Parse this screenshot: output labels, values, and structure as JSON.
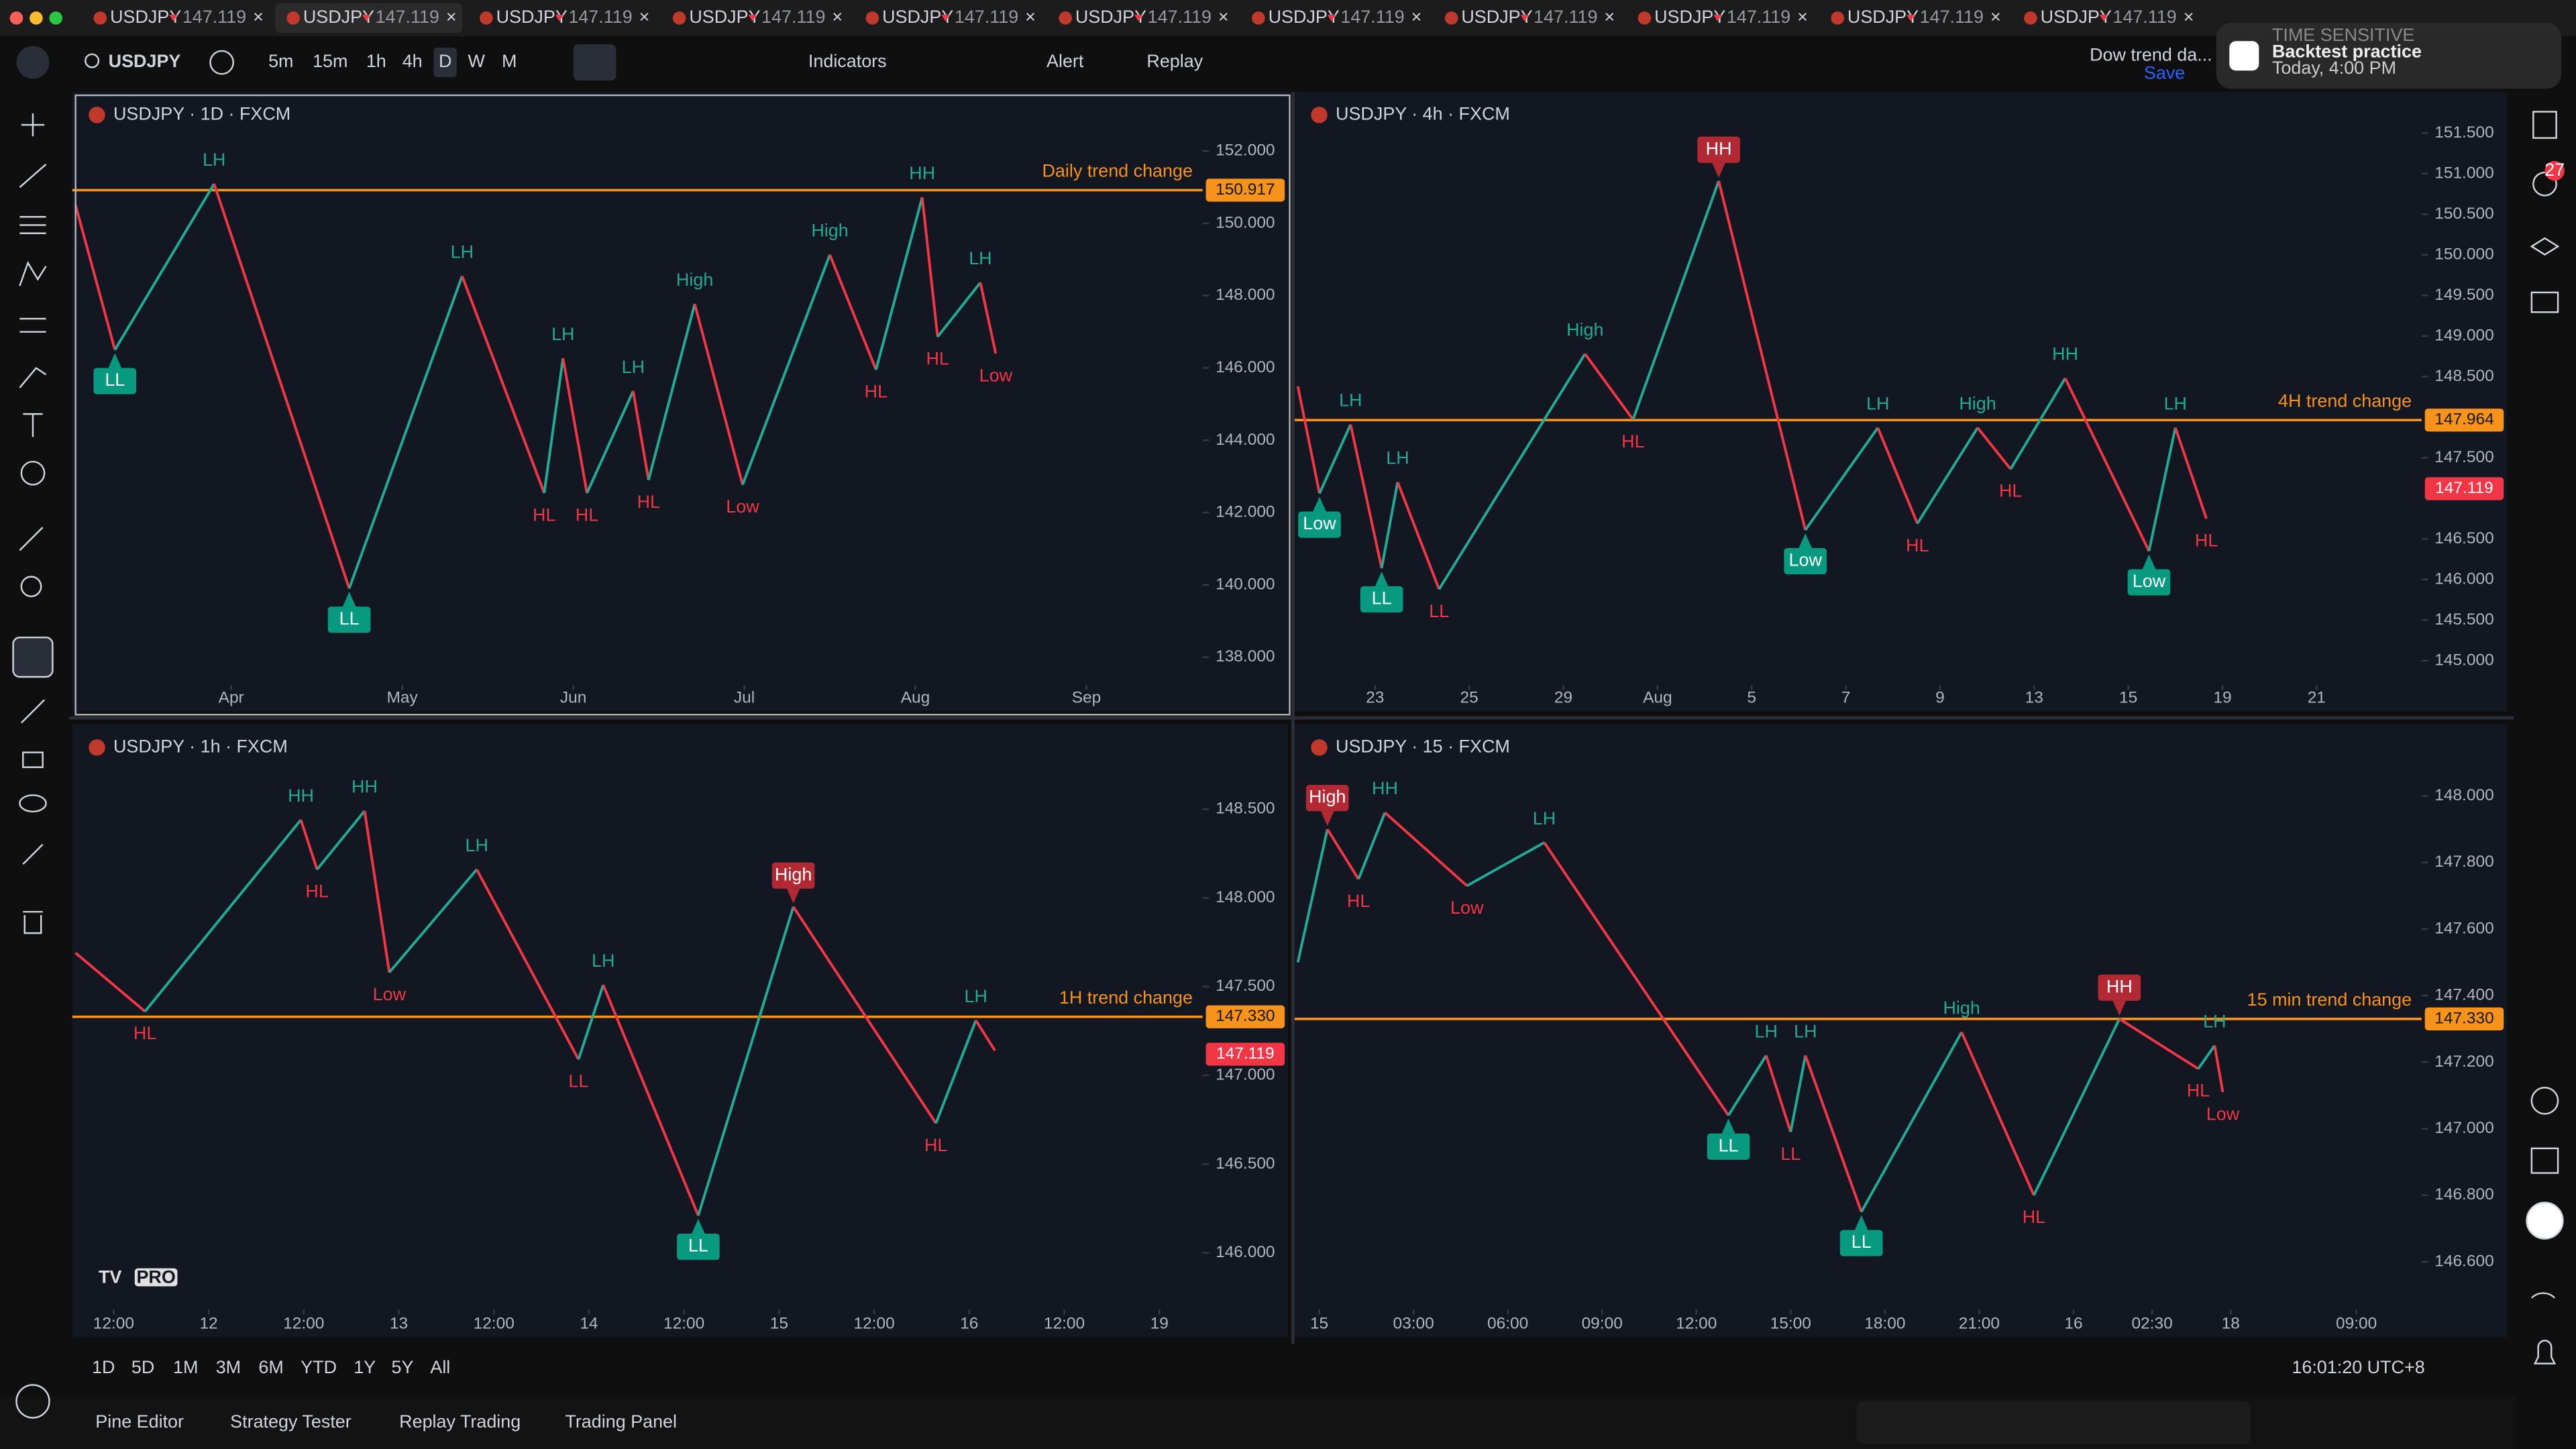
{
  "tabs": [
    {
      "symbol": "USDJPY",
      "price": "147.119"
    },
    {
      "symbol": "USDJPY",
      "price": "147.119"
    },
    {
      "symbol": "USDJPY",
      "price": "147.119"
    },
    {
      "symbol": "USDJPY",
      "price": "147.119"
    },
    {
      "symbol": "USDJPY",
      "price": "147.119"
    },
    {
      "symbol": "USDJPY",
      "price": "147.119"
    },
    {
      "symbol": "USDJPY",
      "price": "147.119"
    },
    {
      "symbol": "USDJPY",
      "price": "147.119"
    },
    {
      "symbol": "USDJPY",
      "price": "147.119"
    },
    {
      "symbol": "USDJPY",
      "price": "147.119"
    },
    {
      "symbol": "USDJPY",
      "price": "147.119"
    }
  ],
  "toolbar": {
    "symbol": "USDJPY",
    "intervals": [
      "5m",
      "15m",
      "1h",
      "4h",
      "D",
      "W",
      "M"
    ],
    "indicators": "Indicators",
    "alert": "Alert",
    "replay": "Replay",
    "layout_name": "Dow trend da...",
    "save": "Save"
  },
  "notification": {
    "tag": "TIME SENSITIVE",
    "title": "Backtest practice",
    "time": "Today, 4:00 PM"
  },
  "alerts_badge": "27",
  "logo": "PRO",
  "chart_data": [
    {
      "type": "line",
      "title": "USDJPY · 1D · FXCM",
      "up_color": "#22ab94",
      "down_color": "#f23645",
      "xlim": [
        -0.91,
        5.66
      ],
      "ylim": [
        137.32,
        153.45
      ],
      "xticks": [
        {
          "value": 0,
          "label": "Apr"
        },
        {
          "value": 1,
          "label": "May"
        },
        {
          "value": 2,
          "label": "Jun"
        },
        {
          "value": 3,
          "label": "Jul"
        },
        {
          "value": 4,
          "label": "Aug"
        },
        {
          "value": 5,
          "label": "Sep"
        }
      ],
      "yticks": [
        {
          "value": 138,
          "label": "138.000"
        },
        {
          "value": 140,
          "label": "140.000"
        },
        {
          "value": 142,
          "label": "142.000"
        },
        {
          "value": 144,
          "label": "144.000"
        },
        {
          "value": 146,
          "label": "146.000"
        },
        {
          "value": 148,
          "label": "148.000"
        },
        {
          "value": 150,
          "label": "150.000"
        },
        {
          "value": 152,
          "label": "152.000"
        }
      ],
      "x": [
        -0.91,
        -0.68,
        -0.1,
        0.69,
        1.35,
        1.83,
        1.94,
        2.08,
        2.35,
        2.44,
        2.71,
        2.99,
        3.5,
        3.77,
        4.04,
        4.13,
        4.38,
        4.47
      ],
      "values": [
        150.5,
        146.5,
        151.09,
        139.9,
        148.54,
        142.54,
        146.27,
        142.54,
        145.36,
        142.9,
        147.77,
        142.77,
        149.13,
        145.95,
        150.72,
        146.86,
        148.36,
        146.4
      ],
      "point_labels": [
        null,
        "LL",
        "LH",
        "LL",
        "LH",
        "HL",
        "LH",
        "HL",
        "LH",
        "HL",
        "High",
        "Low",
        "High",
        "HL",
        "HH",
        "HL",
        "LH",
        "Low"
      ],
      "boxed": [
        false,
        true,
        false,
        true,
        false,
        false,
        false,
        false,
        false,
        false,
        false,
        false,
        false,
        false,
        false,
        false,
        false,
        false
      ],
      "price_line": {
        "label": "Daily trend change",
        "value": 150.917,
        "value_label": "150.917",
        "color": "#f7931a"
      }
    },
    {
      "type": "line",
      "title": "USDJPY · 4h · FXCM",
      "up_color": "#22ab94",
      "down_color": "#f23645",
      "xlim": [
        -0.82,
        11.08
      ],
      "ylim": [
        144.74,
        151.925
      ],
      "xticks": [
        {
          "value": 0,
          "label": "23"
        },
        {
          "value": 1,
          "label": "25"
        },
        {
          "value": 2,
          "label": "29"
        },
        {
          "value": 3,
          "label": "Aug"
        },
        {
          "value": 4,
          "label": "5"
        },
        {
          "value": 5,
          "label": "7"
        },
        {
          "value": 6,
          "label": "9"
        },
        {
          "value": 7,
          "label": "13"
        },
        {
          "value": 8,
          "label": "15"
        },
        {
          "value": 9,
          "label": "19"
        },
        {
          "value": 10,
          "label": "21"
        }
      ],
      "yticks": [
        {
          "value": 145,
          "label": "145.000"
        },
        {
          "value": 145.5,
          "label": "145.500"
        },
        {
          "value": 146,
          "label": "146.000"
        },
        {
          "value": 146.5,
          "label": "146.500"
        },
        {
          "value": 147.5,
          "label": "147.500"
        },
        {
          "value": 148.5,
          "label": "148.500"
        },
        {
          "value": 149,
          "label": "149.000"
        },
        {
          "value": 149.5,
          "label": "149.500"
        },
        {
          "value": 150,
          "label": "150.000"
        },
        {
          "value": 150.5,
          "label": "150.500"
        },
        {
          "value": 151,
          "label": "151.000"
        },
        {
          "value": 151.5,
          "label": "151.500"
        }
      ],
      "x": [
        -0.82,
        -0.59,
        -0.26,
        0.07,
        0.24,
        0.68,
        2.23,
        2.74,
        3.65,
        4.57,
        5.34,
        5.76,
        6.4,
        6.75,
        7.33,
        8.22,
        8.5,
        8.83
      ],
      "values": [
        148.38,
        147.06,
        147.91,
        146.14,
        147.2,
        145.88,
        148.78,
        147.97,
        150.91,
        146.61,
        147.87,
        146.69,
        147.87,
        147.36,
        148.48,
        146.35,
        147.87,
        146.75
      ],
      "point_labels": [
        null,
        "Low",
        "LH",
        "LL",
        "LH",
        "LL",
        "High",
        "HL",
        "HH",
        "Low",
        "LH",
        "HL",
        "High",
        "HL",
        "HH",
        "Low",
        "LH",
        "HL"
      ],
      "boxed": [
        false,
        true,
        false,
        true,
        false,
        false,
        false,
        false,
        true,
        true,
        false,
        false,
        false,
        false,
        false,
        true,
        false,
        false
      ],
      "price_line": {
        "label": "4H trend change",
        "value": 147.964,
        "value_label": "147.964",
        "color": "#f7931a"
      },
      "last_price": {
        "value": 147.119,
        "label": "147.119",
        "color": "#f23645"
      }
    },
    {
      "type": "line",
      "title": "USDJPY · 1h · FXCM",
      "up_color": "#22ab94",
      "down_color": "#f23645",
      "xlim": [
        -0.4,
        11.42
      ],
      "ylim": [
        145.7,
        148.94
      ],
      "xticks": [
        {
          "value": 0,
          "label": "12:00"
        },
        {
          "value": 1,
          "label": "12"
        },
        {
          "value": 2,
          "label": "12:00"
        },
        {
          "value": 3,
          "label": "13"
        },
        {
          "value": 4,
          "label": "12:00"
        },
        {
          "value": 5,
          "label": "14"
        },
        {
          "value": 6,
          "label": "12:00"
        },
        {
          "value": 7,
          "label": "15"
        },
        {
          "value": 8,
          "label": "12:00"
        },
        {
          "value": 9,
          "label": "16"
        },
        {
          "value": 10,
          "label": "12:00"
        },
        {
          "value": 11,
          "label": "19"
        }
      ],
      "yticks": [
        {
          "value": 146,
          "label": "146.000"
        },
        {
          "value": 146.5,
          "label": "146.500"
        },
        {
          "value": 147,
          "label": "147.000"
        },
        {
          "value": 147.5,
          "label": "147.500"
        },
        {
          "value": 148,
          "label": "148.000"
        },
        {
          "value": 148.5,
          "label": "148.500"
        }
      ],
      "x": [
        -0.4,
        0.33,
        1.97,
        2.14,
        2.64,
        2.9,
        3.82,
        4.89,
        5.15,
        6.15,
        7.15,
        8.65,
        9.07,
        9.27
      ],
      "values": [
        147.69,
        147.36,
        148.44,
        148.16,
        148.49,
        147.58,
        148.16,
        147.09,
        147.51,
        146.21,
        147.95,
        146.73,
        147.31,
        147.14
      ],
      "point_labels": [
        null,
        "HL",
        "HH",
        "HL",
        "HH",
        "Low",
        "LH",
        "LL",
        "LH",
        "LL",
        "High",
        "HL",
        "LH",
        null
      ],
      "boxed": [
        false,
        false,
        false,
        false,
        false,
        false,
        false,
        false,
        false,
        true,
        true,
        false,
        false,
        false
      ],
      "price_line": {
        "label": "1H trend change",
        "value": 147.33,
        "value_label": "147.330",
        "color": "#f7931a"
      },
      "last_price": {
        "value": 147.119,
        "label": "147.119",
        "color": "#f23645"
      }
    },
    {
      "type": "line",
      "title": "USDJPY · 15 · FXCM",
      "up_color": "#22ab94",
      "down_color": "#f23645",
      "xlim": [
        -0.68,
        34.97
      ],
      "ylim": [
        146.467,
        148.195
      ],
      "xticks": [
        {
          "value": 0,
          "label": "15"
        },
        {
          "value": 3,
          "label": "03:00"
        },
        {
          "value": 6,
          "label": "06:00"
        },
        {
          "value": 9,
          "label": "09:00"
        },
        {
          "value": 12,
          "label": "12:00"
        },
        {
          "value": 15,
          "label": "15:00"
        },
        {
          "value": 18,
          "label": "18:00"
        },
        {
          "value": 21,
          "label": "21:00"
        },
        {
          "value": 24,
          "label": "16"
        },
        {
          "value": 26.5,
          "label": "02:30"
        },
        {
          "value": 29,
          "label": "18"
        },
        {
          "value": 33,
          "label": "09:00"
        }
      ],
      "yticks": [
        {
          "value": 146.6,
          "label": "146.600"
        },
        {
          "value": 146.8,
          "label": "146.800"
        },
        {
          "value": 147,
          "label": "147.000"
        },
        {
          "value": 147.2,
          "label": "147.200"
        },
        {
          "value": 147.4,
          "label": "147.400"
        },
        {
          "value": 147.6,
          "label": "147.600"
        },
        {
          "value": 147.8,
          "label": "147.800"
        },
        {
          "value": 148,
          "label": "148.000"
        }
      ],
      "x": [
        -0.68,
        0.26,
        1.25,
        2.09,
        4.7,
        7.16,
        13.02,
        14.22,
        15.0,
        15.47,
        17.25,
        20.44,
        22.74,
        25.46,
        27.97,
        28.49,
        28.75
      ],
      "values": [
        147.5,
        147.9,
        147.75,
        147.95,
        147.73,
        147.86,
        147.04,
        147.22,
        146.99,
        147.22,
        146.75,
        147.29,
        146.8,
        147.33,
        147.18,
        147.25,
        147.11
      ],
      "point_labels": [
        null,
        "High",
        "HL",
        "HH",
        "Low",
        "LH",
        "LL",
        "LH",
        "LL",
        "LH",
        "LL",
        "High",
        "HL",
        "HH",
        "HL",
        "LH",
        "Low"
      ],
      "boxed": [
        false,
        true,
        false,
        false,
        false,
        false,
        true,
        false,
        false,
        false,
        true,
        false,
        false,
        true,
        false,
        false,
        false
      ],
      "price_line": {
        "label": "15 min trend change",
        "value": 147.33,
        "value_label": "147.330",
        "color": "#f7931a"
      }
    }
  ],
  "bottom_bar": {
    "ranges": [
      "1D",
      "5D",
      "1M",
      "3M",
      "6M",
      "YTD",
      "1Y",
      "5Y",
      "All"
    ],
    "clock": "16:01:20 UTC+8"
  },
  "bottom_tabs": [
    "Pine Editor",
    "Strategy Tester",
    "Replay Trading",
    "Trading Panel"
  ]
}
